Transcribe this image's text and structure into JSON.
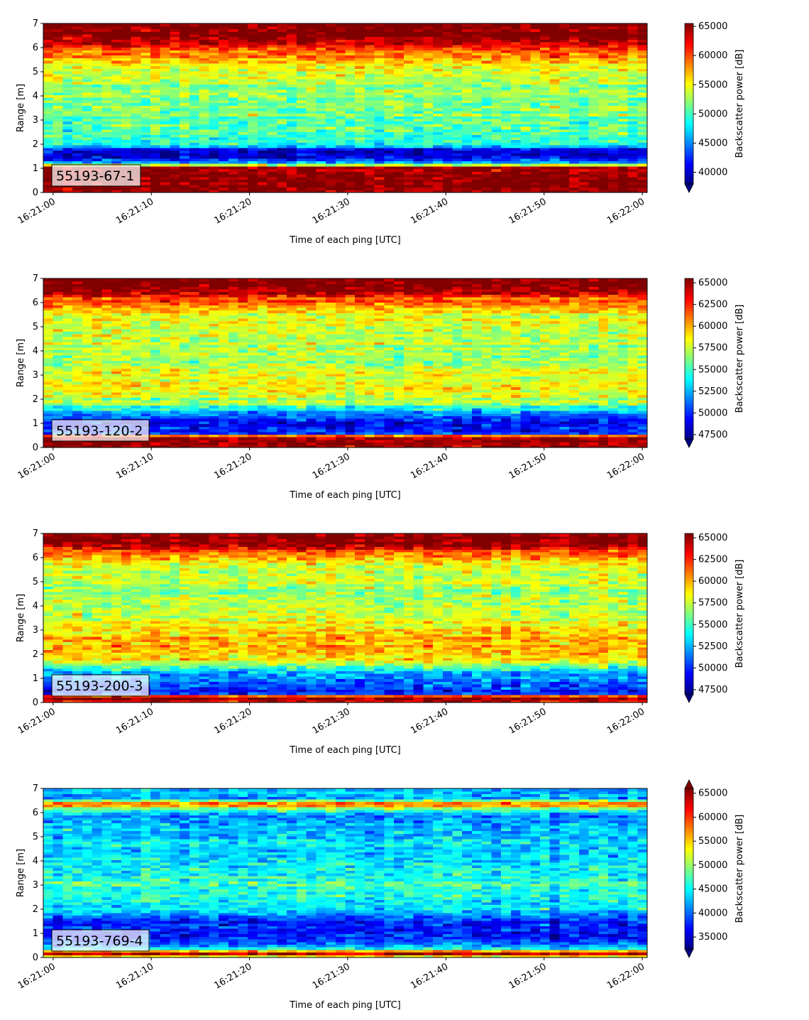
{
  "chart_data": [
    {
      "type": "heatmap",
      "label": "55193-67-1",
      "xlabel": "Time of each ping [UTC]",
      "ylabel": "Range [m]",
      "x_ticks": [
        "16:21:00",
        "16:21:10",
        "16:21:20",
        "16:21:30",
        "16:21:40",
        "16:21:50",
        "16:22:00"
      ],
      "y_ticks": [
        0,
        1,
        2,
        3,
        4,
        5,
        6,
        7
      ],
      "xlim": [
        "16:20:59",
        "16:22:00.5"
      ],
      "ylim": [
        0,
        7
      ],
      "colormap": "jet",
      "colorbar_label": "Backscatter power [dB]",
      "clim": [
        38000,
        65500
      ],
      "colorbar_ticks": [
        40000,
        45000,
        50000,
        55000,
        60000,
        65000
      ],
      "colorbar_extend": "min",
      "profile": [
        {
          "range": 0.0,
          "value": 64500
        },
        {
          "range": 0.3,
          "value": 65500
        },
        {
          "range": 1.05,
          "value": 65000
        },
        {
          "range": 1.2,
          "value": 47000
        },
        {
          "range": 1.5,
          "value": 40000
        },
        {
          "range": 1.8,
          "value": 42000
        },
        {
          "range": 2.0,
          "value": 49000
        },
        {
          "range": 3.0,
          "value": 51000
        },
        {
          "range": 4.0,
          "value": 52000
        },
        {
          "range": 5.0,
          "value": 54000
        },
        {
          "range": 5.8,
          "value": 59000
        },
        {
          "range": 6.2,
          "value": 63000
        },
        {
          "range": 6.5,
          "value": 65500
        },
        {
          "range": 7.0,
          "value": 65500
        }
      ]
    },
    {
      "type": "heatmap",
      "label": "55193-120-2",
      "xlabel": "Time of each ping [UTC]",
      "ylabel": "Range [m]",
      "x_ticks": [
        "16:21:00",
        "16:21:10",
        "16:21:20",
        "16:21:30",
        "16:21:40",
        "16:21:50",
        "16:22:00"
      ],
      "y_ticks": [
        0,
        1,
        2,
        3,
        4,
        5,
        6,
        7
      ],
      "xlim": [
        "16:20:59",
        "16:22:00.5"
      ],
      "ylim": [
        0,
        7
      ],
      "colormap": "jet",
      "colorbar_label": "Backscatter power [dB]",
      "clim": [
        47000,
        65500
      ],
      "colorbar_ticks": [
        47500,
        50000,
        52500,
        55000,
        57500,
        60000,
        62500,
        65000
      ],
      "colorbar_extend": "min",
      "profile": [
        {
          "range": 0.0,
          "value": 65500
        },
        {
          "range": 0.45,
          "value": 65000
        },
        {
          "range": 0.6,
          "value": 50000
        },
        {
          "range": 1.0,
          "value": 49000
        },
        {
          "range": 1.4,
          "value": 51000
        },
        {
          "range": 1.8,
          "value": 57000
        },
        {
          "range": 2.5,
          "value": 59000
        },
        {
          "range": 3.5,
          "value": 57000
        },
        {
          "range": 4.5,
          "value": 57500
        },
        {
          "range": 5.5,
          "value": 58500
        },
        {
          "range": 6.2,
          "value": 62000
        },
        {
          "range": 6.6,
          "value": 65500
        },
        {
          "range": 7.0,
          "value": 65500
        }
      ]
    },
    {
      "type": "heatmap",
      "label": "55193-200-3",
      "xlabel": "Time of each ping [UTC]",
      "ylabel": "Range [m]",
      "x_ticks": [
        "16:21:00",
        "16:21:10",
        "16:21:20",
        "16:21:30",
        "16:21:40",
        "16:21:50",
        "16:22:00"
      ],
      "y_ticks": [
        0,
        1,
        2,
        3,
        4,
        5,
        6,
        7
      ],
      "xlim": [
        "16:20:59",
        "16:22:00.5"
      ],
      "ylim": [
        0,
        7
      ],
      "colormap": "jet",
      "colorbar_label": "Backscatter power [dB]",
      "clim": [
        47000,
        65500
      ],
      "colorbar_ticks": [
        47500,
        50000,
        52500,
        55000,
        57500,
        60000,
        62500,
        65000
      ],
      "colorbar_extend": "min",
      "profile": [
        {
          "range": 0.0,
          "value": 64000
        },
        {
          "range": 0.25,
          "value": 65000
        },
        {
          "range": 0.4,
          "value": 49000
        },
        {
          "range": 0.8,
          "value": 51000
        },
        {
          "range": 1.3,
          "value": 53000
        },
        {
          "range": 1.8,
          "value": 59500
        },
        {
          "range": 2.5,
          "value": 60000
        },
        {
          "range": 3.5,
          "value": 58000
        },
        {
          "range": 4.5,
          "value": 56500
        },
        {
          "range": 5.5,
          "value": 57500
        },
        {
          "range": 6.2,
          "value": 61000
        },
        {
          "range": 6.6,
          "value": 65500
        },
        {
          "range": 7.0,
          "value": 65500
        }
      ]
    },
    {
      "type": "heatmap",
      "label": "55193-769-4",
      "xlabel": "Time of each ping [UTC]",
      "ylabel": "Range [m]",
      "x_ticks": [
        "16:21:00",
        "16:21:10",
        "16:21:20",
        "16:21:30",
        "16:21:40",
        "16:21:50",
        "16:22:00"
      ],
      "y_ticks": [
        0,
        1,
        2,
        3,
        4,
        5,
        6,
        7
      ],
      "xlim": [
        "16:20:59",
        "16:22:00.5"
      ],
      "ylim": [
        0,
        7
      ],
      "colormap": "jet",
      "colorbar_label": "Backscatter power [dB]",
      "clim": [
        32500,
        66000
      ],
      "colorbar_ticks": [
        35000,
        40000,
        45000,
        50000,
        55000,
        60000,
        65000
      ],
      "colorbar_extend": "both",
      "profile": [
        {
          "range": 0.0,
          "value": 50000
        },
        {
          "range": 0.2,
          "value": 65000
        },
        {
          "range": 0.35,
          "value": 45000
        },
        {
          "range": 0.8,
          "value": 37000
        },
        {
          "range": 1.5,
          "value": 37500
        },
        {
          "range": 2.0,
          "value": 44000
        },
        {
          "range": 3.0,
          "value": 47000
        },
        {
          "range": 4.0,
          "value": 44000
        },
        {
          "range": 5.0,
          "value": 43000
        },
        {
          "range": 6.0,
          "value": 41000
        },
        {
          "range": 6.35,
          "value": 60000
        },
        {
          "range": 6.6,
          "value": 42000
        },
        {
          "range": 7.0,
          "value": 43000
        }
      ]
    }
  ]
}
